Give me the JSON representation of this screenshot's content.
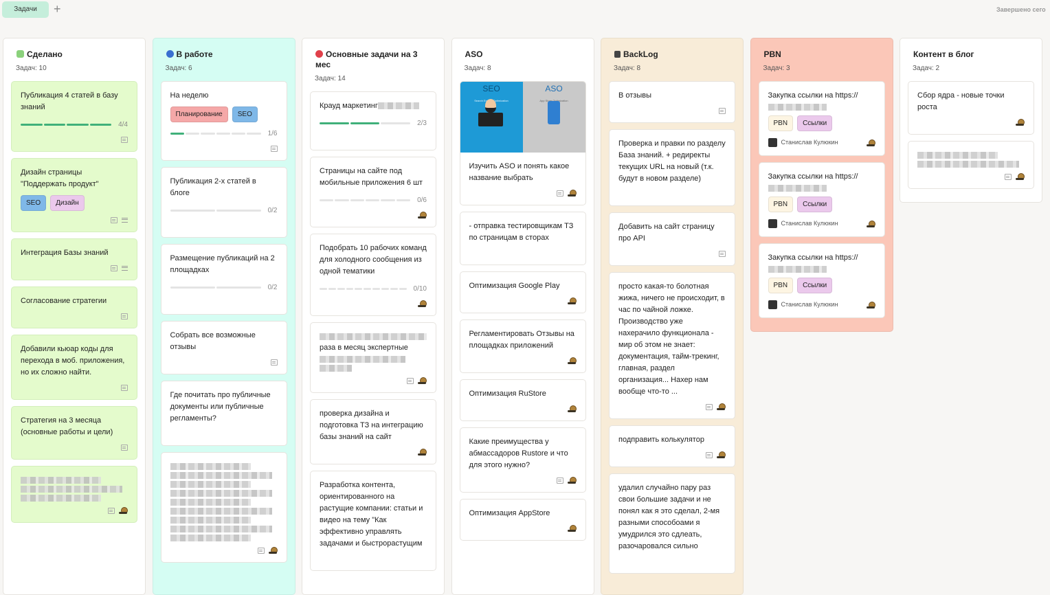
{
  "topbar": {
    "tab_label": "Задачи",
    "add_icon": "plus-icon",
    "done_today": "Завершено сего"
  },
  "colors": {
    "tab": "#c5eedb",
    "done_card": "#e4fbcc",
    "in_work_col": "#d5fdf3",
    "backlog_col": "#f8ecd8",
    "pbn_col": "#fbc7b8",
    "progress": "#40b07a"
  },
  "columns": [
    {
      "title": "Сделано",
      "icon": "puzzle-icon",
      "icon_color": "#8bd17c",
      "count": "Задач: 10",
      "bg": "#ffffff",
      "card_bg": "#e4fbcc",
      "cards": [
        {
          "title": "Публикация 4 статей в базу знаний",
          "progress": {
            "done": 4,
            "total": 4,
            "label": "4/4"
          },
          "icons": [
            "comment"
          ]
        },
        {
          "title": "Дизайн страницы \"Поддержать продукт\"",
          "tags": [
            {
              "label": "SEO",
              "color": "#7fb8e8"
            },
            {
              "label": "Дизайн",
              "color": "#ebc9ec"
            }
          ],
          "icons": [
            "comment",
            "list"
          ]
        },
        {
          "title": "Интеграция Базы знаний",
          "icons": [
            "comment",
            "list"
          ]
        },
        {
          "title": "Согласование стратегии",
          "icons": [
            "comment"
          ]
        },
        {
          "title": "Добавили кьюар коды для перехода в моб. приложения, но их сложно найти.",
          "icons": [
            "comment"
          ]
        },
        {
          "title": "Стратегия на 3 месяца (основные работы и цели)",
          "icons": [
            "comment"
          ]
        },
        {
          "blurred": 3,
          "icons": [
            "comment",
            "snail"
          ]
        }
      ]
    },
    {
      "title": "В работе",
      "icon": "blue-circle-icon",
      "icon_color": "#3a6fd0",
      "count": "Задач: 6",
      "bg": "#d5fdf3",
      "cards": [
        {
          "title": "На неделю",
          "tags": [
            {
              "label": "Планирование",
              "color": "#f5a8a8"
            },
            {
              "label": "SEO",
              "color": "#7fb8e8"
            }
          ],
          "progress": {
            "done": 1,
            "total": 6,
            "label": "1/6"
          },
          "icons": [
            "comment"
          ]
        },
        {
          "title": "Публикация 2-х статей в блоге",
          "progress": {
            "done": 0,
            "total": 2,
            "label": "0/2"
          }
        },
        {
          "title": "Размещение публикаций на 2 площадках",
          "progress": {
            "done": 0,
            "total": 2,
            "label": "0/2"
          }
        },
        {
          "title": "Собрать все возможные отзывы",
          "icons": [
            "comment"
          ]
        },
        {
          "title": "Где почитать про публичные документы или публичные регламенты?"
        },
        {
          "blurred": 9,
          "icons": [
            "comment",
            "snail"
          ]
        }
      ]
    },
    {
      "title": "Основные задачи на 3 мес",
      "icon": "red-circle-icon",
      "icon_color": "#e0404a",
      "count": "Задач: 14",
      "bg": "#ffffff",
      "cards": [
        {
          "title": "Крауд маркетинг",
          "blur_suffix": true,
          "progress": {
            "done": 2,
            "total": 3,
            "label": "2/3"
          }
        },
        {
          "title": "Страницы на сайте под мобильные приложения 6 шт",
          "progress": {
            "done": 0,
            "total": 6,
            "label": "0/6"
          },
          "icons": [
            "snail"
          ]
        },
        {
          "title": "Подобрать 10 рабочих команд для холодного сообщения из одной тематики",
          "progress": {
            "done": 0,
            "total": 10,
            "label": "0/10"
          },
          "icons": [
            "snail"
          ]
        },
        {
          "title": "раза в месяц экспертные",
          "blurred": 3,
          "icons": [
            "comment",
            "snail"
          ]
        },
        {
          "title": "проверка дизайна и подготовка ТЗ на интеграцию базы знаний на сайт",
          "icons": [
            "snail"
          ]
        },
        {
          "title": "Разработка контента, ориентированного на растущие компании: статьи и видео на тему \"Как эффективно управлять задачами и быстрорастущим"
        }
      ]
    },
    {
      "title": "ASO",
      "count": "Задач: 8",
      "bg": "#ffffff",
      "cards": [
        {
          "image": {
            "left": "SEO",
            "left_sub": "Search Engine Optimization",
            "right": "ASO",
            "right_sub": "App Store Optimization"
          },
          "title": "Изучить ASO и понять какое название выбрать",
          "icons": [
            "comment",
            "snail"
          ]
        },
        {
          "title": "- отправка тестировщикам ТЗ по страницам в сторах"
        },
        {
          "title": "Оптимизация Google Play",
          "icons": [
            "snail"
          ]
        },
        {
          "title": "Регламентировать Отзывы на площадках приложений",
          "icons": [
            "snail"
          ]
        },
        {
          "title": "Оптимизация RuStore",
          "icons": [
            "snail"
          ]
        },
        {
          "title": "Какие преимущества у абмассадоров Rustore и что для этого нужно?",
          "icons": [
            "comment",
            "snail"
          ]
        },
        {
          "title": "Оптимизация AppStore",
          "icons": [
            "snail"
          ]
        }
      ]
    },
    {
      "title": "BackLog",
      "icon": "cabinet-icon",
      "icon_color": "#444444",
      "count": "Задач: 8",
      "bg": "#f8ecd8",
      "cards": [
        {
          "title": "В отзывы",
          "icons": [
            "comment"
          ]
        },
        {
          "title": "Проверка и правки по разделу База знаний. + редиректы текущих URL на новый (т.к. будут в новом разделе)"
        },
        {
          "title": "Добавить на сайт страницу про API",
          "icons": [
            "comment"
          ]
        },
        {
          "title": "просто какая-то болотная жижа, ничего не происходит, в час по чайной ложке. Производство уже нахерачило функционала - мир об этом не знает: документация, тайм-трекинг, главная, раздел организация... Нахер нам вообще что-то ...",
          "icons": [
            "comment",
            "snail"
          ]
        },
        {
          "title": "подправить колькулятор",
          "icons": [
            "comment",
            "snail"
          ]
        },
        {
          "title": "удалил случайно пару раз свои большие задачи и не понял как я это сделал, 2-мя разными способоами я умудрился это сдлеать, разочаровался сильно"
        }
      ]
    },
    {
      "title": "PBN",
      "count": "Задач: 3",
      "bg": "#fbc7b8",
      "short": true,
      "cards": [
        {
          "title": "Закупка ссылки на https://",
          "blurred": 1,
          "tags": [
            {
              "label": "PBN",
              "color": "#fdf5e3"
            },
            {
              "label": "Ссылки",
              "color": "#ebc9ec"
            }
          ],
          "assignee": "Станислав Кулюкин",
          "icons": [
            "snail"
          ]
        },
        {
          "title": "Закупка ссылки на https://",
          "blurred": 1,
          "tags": [
            {
              "label": "PBN",
              "color": "#fdf5e3"
            },
            {
              "label": "Ссылки",
              "color": "#ebc9ec"
            }
          ],
          "assignee": "Станислав Кулюкин",
          "icons": [
            "snail"
          ]
        },
        {
          "title": "Закупка ссылки на https://",
          "blurred": 1,
          "tags": [
            {
              "label": "PBN",
              "color": "#fdf5e3"
            },
            {
              "label": "Ссылки",
              "color": "#ebc9ec"
            }
          ],
          "assignee": "Станислав Кулюкин",
          "icons": [
            "snail"
          ]
        }
      ]
    },
    {
      "title": "Контент в блог",
      "count": "Задач: 2",
      "bg": "#ffffff",
      "short": true,
      "cards": [
        {
          "title": "Сбор ядра - новые точки роста",
          "icons": [
            "snail"
          ]
        },
        {
          "blurred": 2,
          "icons": [
            "comment",
            "snail"
          ]
        }
      ]
    }
  ]
}
